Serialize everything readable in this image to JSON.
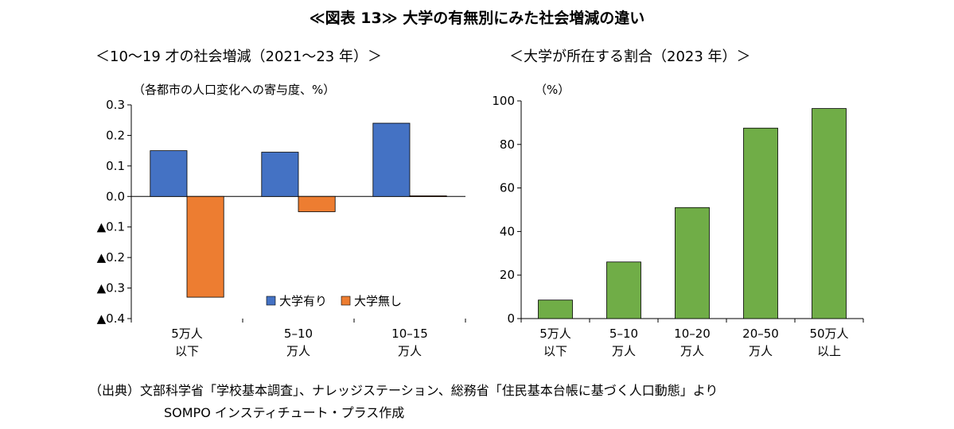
{
  "title": "≪図表 13≫ 大学の有無別にみた社会増減の違い",
  "source": {
    "line1": "（出典）文部科学省「学校基本調査」、ナレッジステーション、総務省「住民基本台帳に基づく人口動態」より",
    "line2": "SOMPO インスティチュート・プラス作成"
  },
  "chart_data": [
    {
      "type": "bar",
      "title": "＜10～19 才の社会増減（2021～23 年）＞",
      "unit_label": "（各都市の人口変化への寄与度、%）",
      "categories": [
        [
          "5万人",
          "以下"
        ],
        [
          "5–10",
          "万人"
        ],
        [
          "10–15",
          "万人"
        ]
      ],
      "series": [
        {
          "name": "大学有り",
          "color": "#4472C4",
          "values": [
            0.15,
            0.145,
            0.24
          ]
        },
        {
          "name": "大学無し",
          "color": "#ED7D31",
          "values": [
            -0.33,
            -0.05,
            0.002
          ]
        }
      ],
      "ylim": [
        -0.4,
        0.3
      ],
      "yticks": [
        0.3,
        0.2,
        0.1,
        0.0,
        -0.1,
        -0.2,
        -0.3,
        -0.4
      ],
      "ytick_labels": [
        "0.3",
        "0.2",
        "0.1",
        "0.0",
        "▲0.1",
        "▲0.2",
        "▲0.3",
        "▲0.4"
      ],
      "legend_position": "bottom-right",
      "grid": false
    },
    {
      "type": "bar",
      "title": "＜大学が所在する割合（2023 年）＞",
      "unit_label": "（%）",
      "categories": [
        [
          "5万人",
          "以下"
        ],
        [
          "5–10",
          "万人"
        ],
        [
          "10–20",
          "万人"
        ],
        [
          "20–50",
          "万人"
        ],
        [
          "50万人",
          "以上"
        ]
      ],
      "series": [
        {
          "color": "#70AD47",
          "values": [
            8.5,
            26,
            51,
            87.5,
            96.5
          ]
        }
      ],
      "ylim": [
        0,
        100
      ],
      "yticks": [
        100,
        80,
        60,
        40,
        20,
        0
      ],
      "ytick_labels": [
        "100",
        "80",
        "60",
        "40",
        "20",
        "0"
      ],
      "grid": false
    }
  ]
}
